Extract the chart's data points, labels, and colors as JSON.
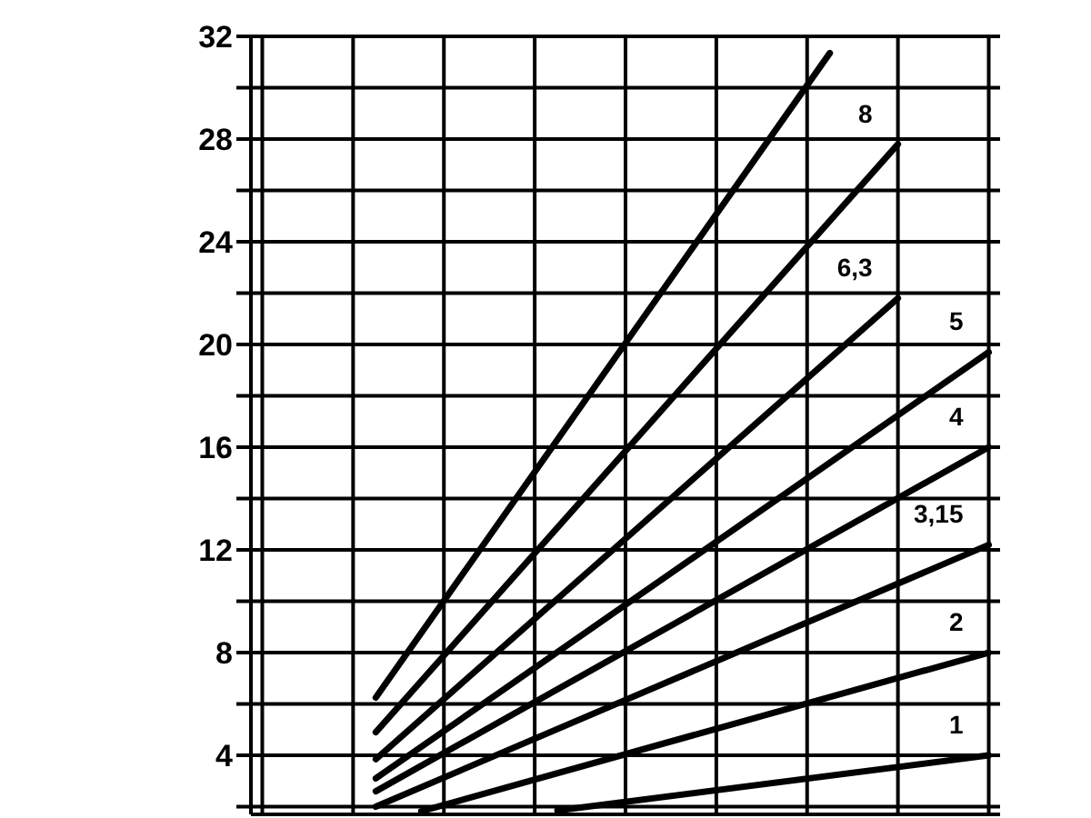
{
  "chart_data": {
    "type": "line",
    "categories": [
      null,
      null,
      null,
      null,
      null,
      null,
      null,
      null,
      null,
      null,
      null,
      null,
      null,
      null,
      null,
      null,
      null,
      null,
      null,
      null,
      null,
      null,
      null,
      null,
      null,
      null,
      null,
      null,
      null,
      null,
      null,
      null,
      null
    ],
    "ylim": [
      1.7,
      32
    ],
    "yticks": [
      {
        "value": 2,
        "label": null
      },
      4,
      {
        "value": 6,
        "label": null
      },
      8,
      {
        "value": 10,
        "label": null
      },
      12,
      {
        "value": 14,
        "label": null
      },
      16,
      {
        "value": 18,
        "label": null
      },
      20,
      {
        "value": 22,
        "label": null
      },
      24,
      {
        "value": 26,
        "label": null
      },
      28,
      {
        "value": 30,
        "label": null
      },
      32
    ],
    "tick_labels": "y",
    "grid": true,
    "marker": "none",
    "line_style": "solid",
    "series": [
      {
        "name": "1",
        "color": "#000000",
        "values": [
          null,
          null,
          null,
          null,
          null,
          null,
          null,
          null,
          null,
          null,
          null,
          null,
          null,
          1.85,
          null,
          null,
          null,
          null,
          null,
          null,
          null,
          null,
          null,
          null,
          null,
          null,
          null,
          null,
          null,
          null,
          null,
          null,
          4
        ]
      },
      {
        "name": "2",
        "color": "#000000",
        "values": [
          null,
          null,
          null,
          null,
          null,
          null,
          null,
          1.82,
          null,
          null,
          null,
          null,
          null,
          null,
          null,
          null,
          null,
          null,
          null,
          null,
          null,
          null,
          null,
          null,
          null,
          null,
          null,
          null,
          null,
          null,
          null,
          null,
          8
        ]
      },
      {
        "name": "3,15",
        "color": "#000000",
        "values": [
          null,
          null,
          null,
          null,
          null,
          2.0,
          null,
          null,
          null,
          null,
          null,
          null,
          null,
          null,
          null,
          null,
          null,
          null,
          null,
          null,
          null,
          null,
          null,
          null,
          null,
          null,
          null,
          null,
          null,
          null,
          null,
          null,
          12.2
        ]
      },
      {
        "name": "4",
        "color": "#000000",
        "values": [
          null,
          null,
          null,
          null,
          null,
          2.6,
          null,
          null,
          null,
          null,
          null,
          null,
          null,
          null,
          null,
          null,
          null,
          null,
          null,
          null,
          null,
          null,
          null,
          null,
          null,
          null,
          null,
          null,
          null,
          null,
          null,
          null,
          16
        ]
      },
      {
        "name": "5",
        "color": "#000000",
        "values": [
          null,
          null,
          null,
          null,
          null,
          3.1,
          null,
          null,
          null,
          null,
          null,
          null,
          null,
          null,
          null,
          null,
          null,
          null,
          null,
          null,
          null,
          null,
          null,
          null,
          null,
          null,
          null,
          null,
          null,
          null,
          null,
          null,
          19.7
        ]
      },
      {
        "name": "6,3",
        "color": "#000000",
        "values": [
          null,
          null,
          null,
          null,
          null,
          3.85,
          null,
          null,
          null,
          null,
          null,
          null,
          null,
          null,
          null,
          null,
          null,
          null,
          null,
          null,
          null,
          null,
          null,
          null,
          null,
          null,
          null,
          null,
          21.8,
          null,
          null,
          null,
          null
        ]
      },
      {
        "name": "8",
        "color": "#000000",
        "values": [
          null,
          null,
          null,
          null,
          null,
          4.9,
          null,
          null,
          null,
          null,
          null,
          null,
          null,
          null,
          null,
          null,
          null,
          null,
          null,
          null,
          null,
          null,
          null,
          null,
          null,
          null,
          null,
          null,
          27.8,
          null,
          null,
          null,
          null
        ]
      },
      {
        "color": "#000000",
        "values": [
          null,
          null,
          null,
          null,
          null,
          6.25,
          null,
          null,
          null,
          null,
          null,
          null,
          null,
          null,
          null,
          null,
          null,
          null,
          null,
          null,
          null,
          null,
          null,
          null,
          null,
          31.35,
          null,
          null,
          null,
          null,
          null,
          null,
          null
        ]
      }
    ]
  }
}
